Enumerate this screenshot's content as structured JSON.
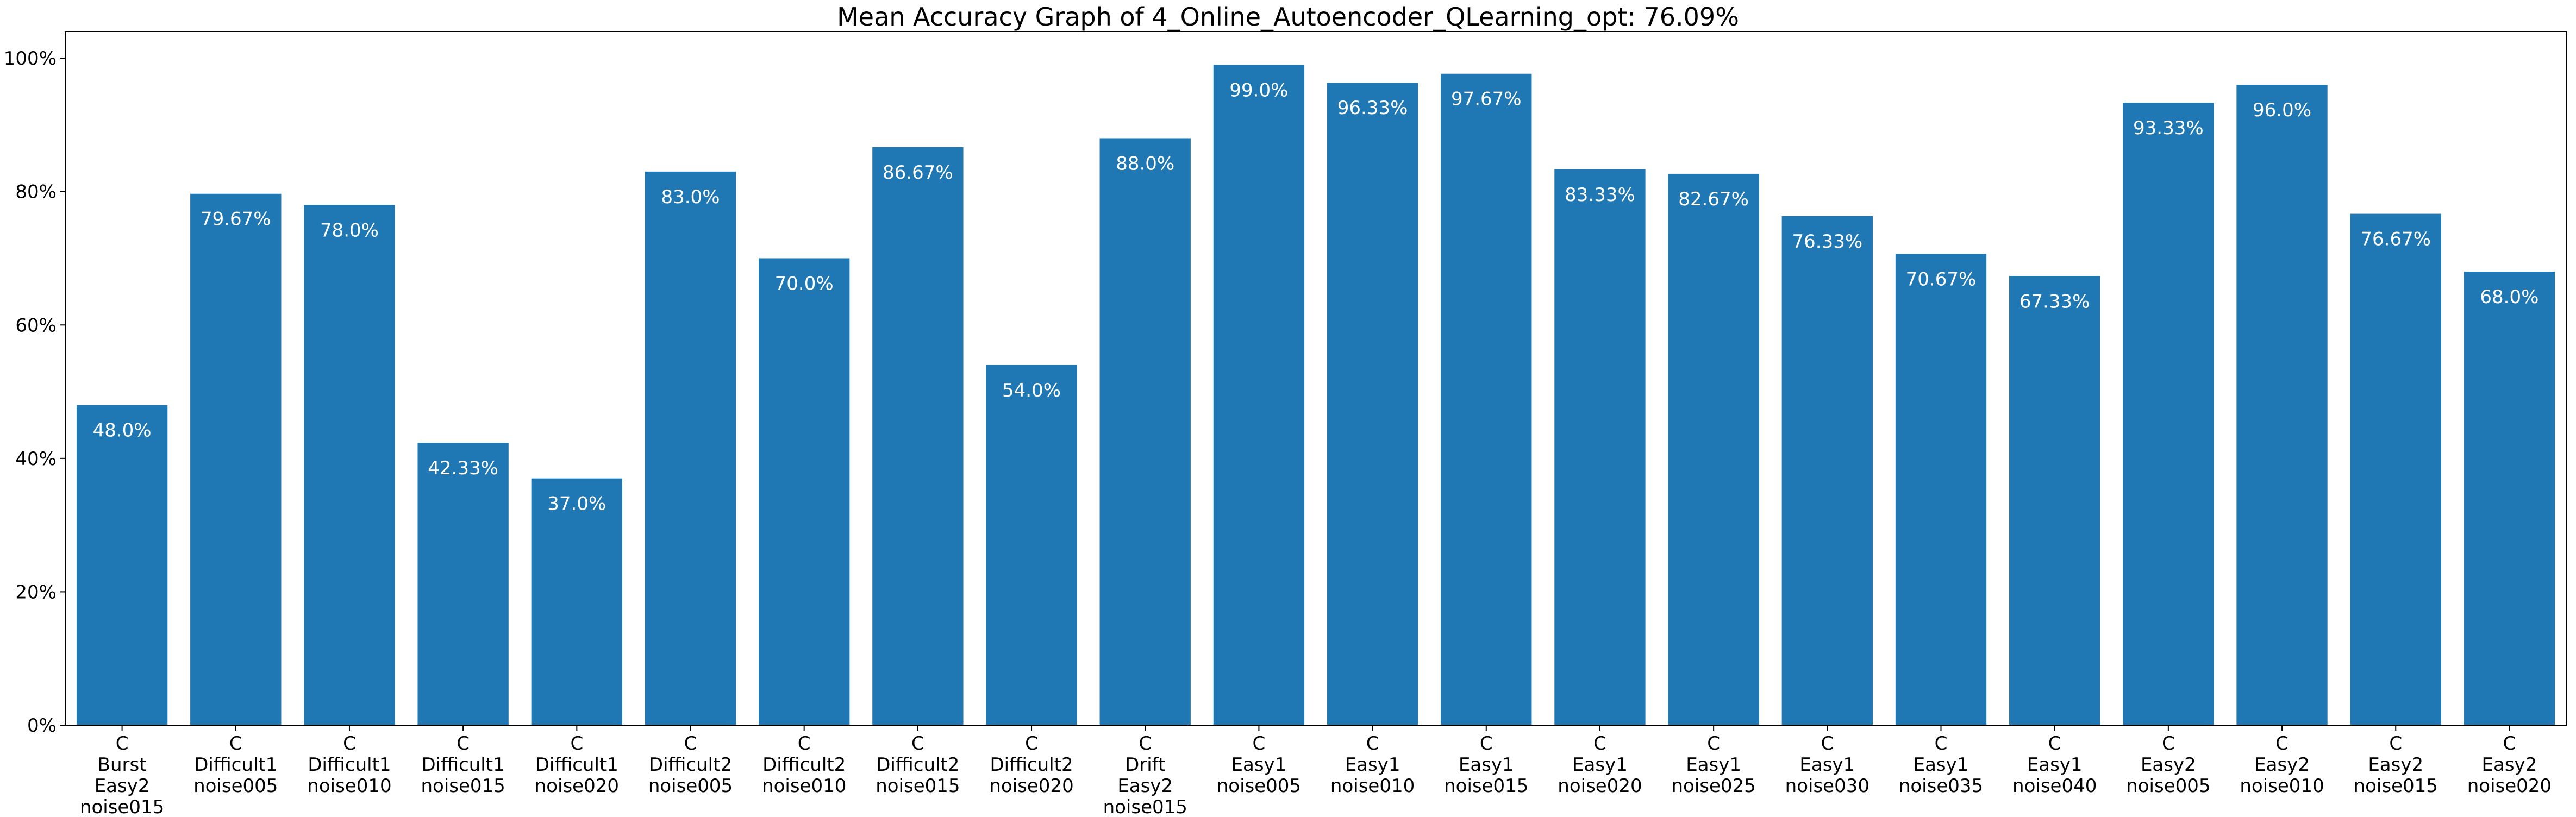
{
  "chart_data": {
    "type": "bar",
    "title": "Mean Accuracy Graph of 4_Online_Autoencoder_QLearning_opt: 76.09%",
    "xlabel": "",
    "ylabel": "",
    "ylim": [
      0,
      104
    ],
    "yticks": [
      0,
      20,
      40,
      60,
      80,
      100
    ],
    "ytick_labels": [
      "0%",
      "20%",
      "40%",
      "60%",
      "80%",
      "100%"
    ],
    "grid": false,
    "bar_color": "#1f77b4",
    "label_color": "#ffffff",
    "categories": [
      [
        "C",
        "Burst",
        "Easy2",
        "noise015"
      ],
      [
        "C",
        "Difficult1",
        "noise005"
      ],
      [
        "C",
        "Difficult1",
        "noise010"
      ],
      [
        "C",
        "Difficult1",
        "noise015"
      ],
      [
        "C",
        "Difficult1",
        "noise020"
      ],
      [
        "C",
        "Difficult2",
        "noise005"
      ],
      [
        "C",
        "Difficult2",
        "noise010"
      ],
      [
        "C",
        "Difficult2",
        "noise015"
      ],
      [
        "C",
        "Difficult2",
        "noise020"
      ],
      [
        "C",
        "Drift",
        "Easy2",
        "noise015"
      ],
      [
        "C",
        "Easy1",
        "noise005"
      ],
      [
        "C",
        "Easy1",
        "noise010"
      ],
      [
        "C",
        "Easy1",
        "noise015"
      ],
      [
        "C",
        "Easy1",
        "noise020"
      ],
      [
        "C",
        "Easy1",
        "noise025"
      ],
      [
        "C",
        "Easy1",
        "noise030"
      ],
      [
        "C",
        "Easy1",
        "noise035"
      ],
      [
        "C",
        "Easy1",
        "noise040"
      ],
      [
        "C",
        "Easy2",
        "noise005"
      ],
      [
        "C",
        "Easy2",
        "noise010"
      ],
      [
        "C",
        "Easy2",
        "noise015"
      ],
      [
        "C",
        "Easy2",
        "noise020"
      ]
    ],
    "values": [
      48.0,
      79.67,
      78.0,
      42.33,
      37.0,
      83.0,
      70.0,
      86.67,
      54.0,
      88.0,
      99.0,
      96.33,
      97.67,
      83.33,
      82.67,
      76.33,
      70.67,
      67.33,
      93.33,
      96.0,
      76.67,
      68.0
    ],
    "value_labels": [
      "48.0%",
      "79.67%",
      "78.0%",
      "42.33%",
      "37.0%",
      "83.0%",
      "70.0%",
      "86.67%",
      "54.0%",
      "88.0%",
      "99.0%",
      "96.33%",
      "97.67%",
      "83.33%",
      "82.67%",
      "76.33%",
      "70.67%",
      "67.33%",
      "93.33%",
      "96.0%",
      "76.67%",
      "68.0%"
    ]
  }
}
